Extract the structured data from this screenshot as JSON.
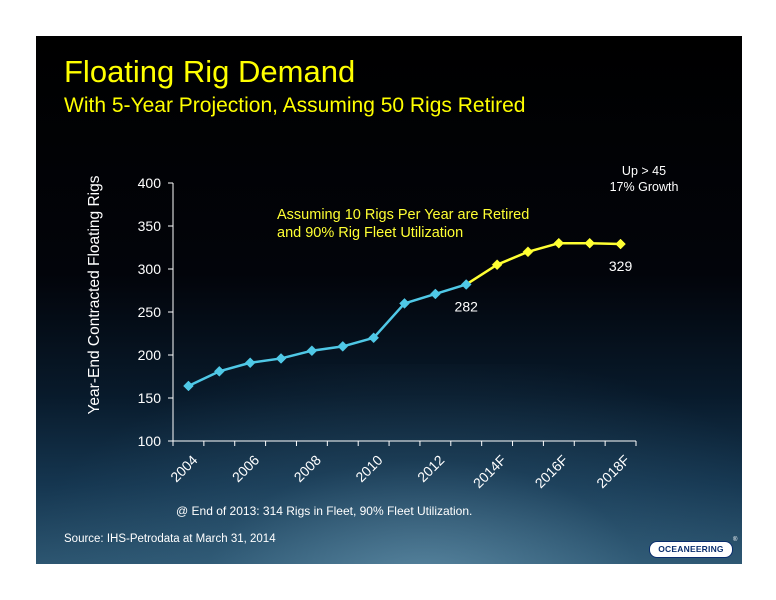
{
  "title": "Floating Rig Demand",
  "subtitle": "With 5-Year Projection, Assuming 50 Rigs Retired",
  "note": {
    "line1": "Up > 45",
    "line2": "17% Growth"
  },
  "annotation": {
    "line1": "Assuming 10 Rigs Per Year are Retired",
    "line2": "and 90% Rig Fleet Utilization"
  },
  "footnote": "@ End of 2013:  314 Rigs in Fleet, 90% Fleet Utilization.",
  "source": "Source:  IHS-Petrodata at March 31, 2014",
  "logo_text": "OCEANEERING",
  "logo_mark": "®",
  "colors": {
    "title": "#ffff00",
    "historical": "#4fc8e6",
    "projection": "#ffff33"
  },
  "chart_data": {
    "type": "line",
    "title": "Floating Rig Demand",
    "ylabel": "Year-End Contracted Floating Rigs",
    "ylim": [
      100,
      400
    ],
    "yticks": [
      100,
      150,
      200,
      250,
      300,
      350,
      400
    ],
    "x": [
      "2004",
      "2005",
      "2006",
      "2007",
      "2008",
      "2009",
      "2010",
      "2011",
      "2012",
      "2013",
      "2014F",
      "2015F",
      "2016F",
      "2017F",
      "2018F"
    ],
    "xtick_labels": [
      "2004",
      "2006",
      "2008",
      "2010",
      "2012",
      "2014F",
      "2016F",
      "2018F"
    ],
    "series": [
      {
        "segment": "historical",
        "x": [
          "2004",
          "2005",
          "2006",
          "2007",
          "2008",
          "2009",
          "2010",
          "2011",
          "2012",
          "2013"
        ],
        "values": [
          164,
          181,
          191,
          196,
          205,
          210,
          220,
          260,
          271,
          282
        ]
      },
      {
        "segment": "projection",
        "x": [
          "2013",
          "2014F",
          "2015F",
          "2016F",
          "2017F",
          "2018F"
        ],
        "values": [
          282,
          305,
          320,
          330,
          330,
          329
        ]
      }
    ],
    "data_labels": [
      {
        "x": "2013",
        "value": "282"
      },
      {
        "x": "2018F",
        "value": "329"
      }
    ],
    "grid": false,
    "legend": "none"
  }
}
